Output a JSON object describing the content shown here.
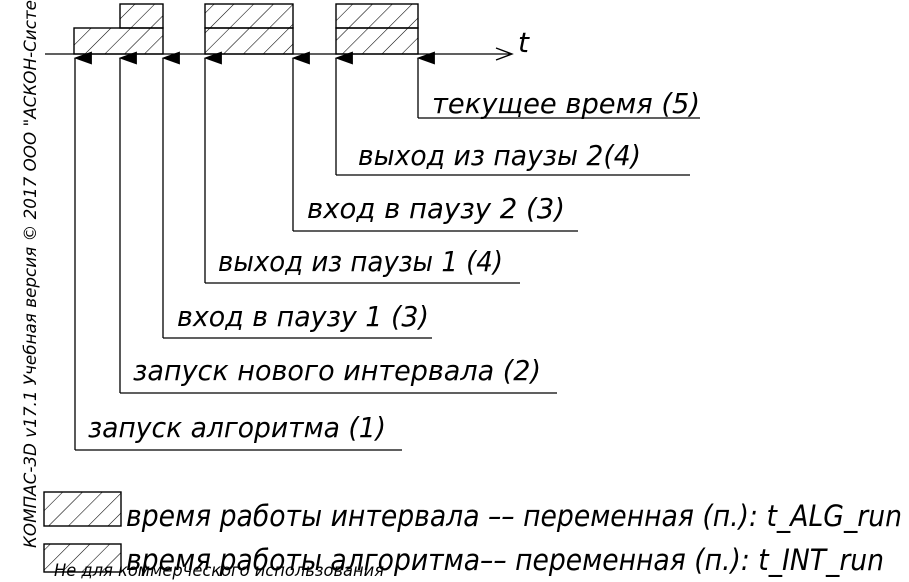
{
  "axis": {
    "label": "t"
  },
  "events": [
    {
      "label": "запуск алгоритма (1)"
    },
    {
      "label": "запуск нового интервала (2)"
    },
    {
      "label": "вход в паузу 1 (3)"
    },
    {
      "label": "выход из паузы 1 (4)"
    },
    {
      "label": "вход в паузу 2 (3)"
    },
    {
      "label": "выход из паузы 2(4)"
    },
    {
      "label": "текущее время (5)"
    }
  ],
  "legend": [
    {
      "label": "время работы интервала –– переменная (п.): t_ALG_run"
    },
    {
      "label": "время работы алгоритма–– переменная (п.): t_INT_run"
    }
  ],
  "side_text": "КОМПАС-3D v17.1 Учебная версия © 2017 ООО \"АСКОН-Систе",
  "watermark": "Не для коммерческого использования"
}
